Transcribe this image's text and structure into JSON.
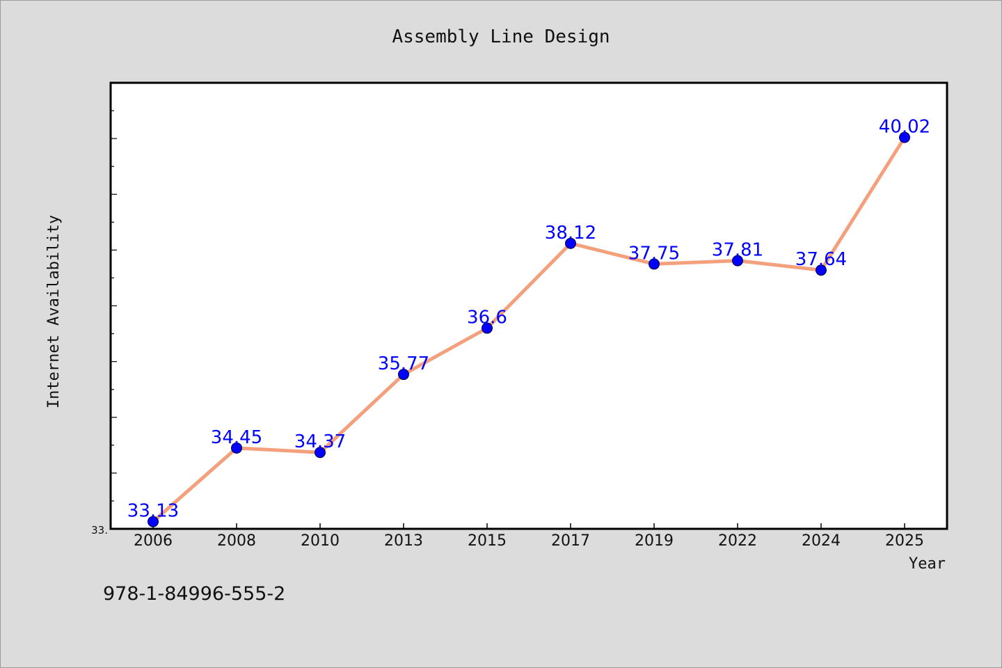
{
  "chart_data": {
    "type": "line",
    "title": "Assembly Line Design",
    "xlabel": "Year",
    "ylabel": "Internet Availability",
    "categories": [
      "2006",
      "2008",
      "2010",
      "2013",
      "2015",
      "2017",
      "2019",
      "2022",
      "2024",
      "2025"
    ],
    "series": [
      {
        "values": [
          33.13,
          34.45,
          34.37,
          35.77,
          36.6,
          38.12,
          37.75,
          37.81,
          37.64,
          40.02
        ]
      }
    ],
    "ylim": [
      33.0,
      41.0
    ],
    "y_tick_labels": [
      "33."
    ],
    "data_labels": [
      "33.13",
      "34.45",
      "34.37",
      "35.77",
      "36.6",
      "38.12",
      "37.75",
      "37.81",
      "37.64",
      "40.02"
    ],
    "grid": false,
    "colors": {
      "line": "#f4a07c",
      "marker": "#0000ff",
      "data_label": "#0000ff",
      "plot_background": "#ffffff",
      "figure_background": "#dcdcdc"
    }
  },
  "footer": {
    "isbn": "978-1-84996-555-2"
  }
}
